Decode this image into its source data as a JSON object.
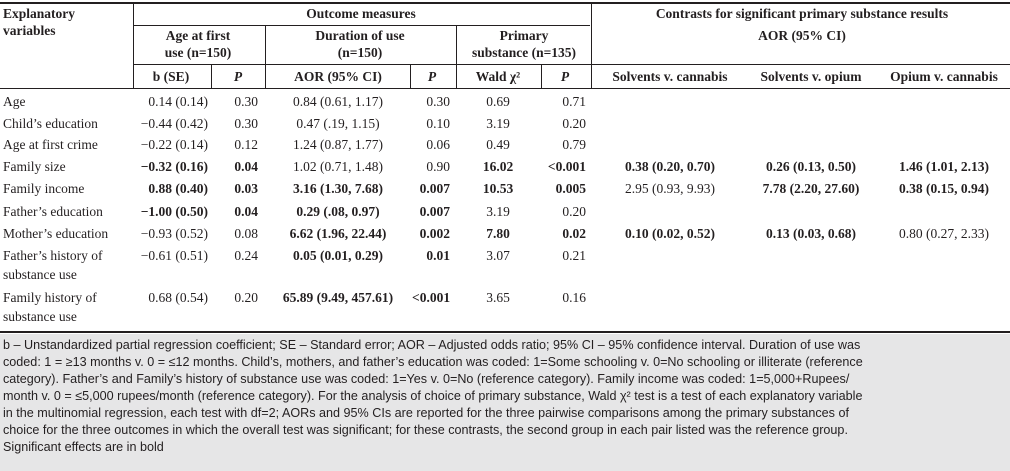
{
  "header": {
    "explanatory": [
      "Explanatory",
      "variables"
    ],
    "outcome_measures": "Outcome measures",
    "contrasts_title": "Contrasts for significant primary substance results",
    "contrasts_sub": "AOR (95% CI)",
    "age_first_use": [
      "Age at first",
      "use (n=150)"
    ],
    "duration": [
      "Duration of use",
      "(n=150)"
    ],
    "primary": [
      "Primary",
      "substance (n=135)"
    ],
    "sub": [
      "b (SE)",
      "P",
      "AOR (95% CI)",
      "P",
      "Wald χ²",
      "P",
      "Solvents v. cannabis",
      "Solvents v. opium",
      "Opium v. cannabis"
    ]
  },
  "rows": [
    {
      "label": [
        "Age"
      ],
      "c": [
        "0.14 (0.14)",
        "0.30",
        "0.84 (0.61, 1.17)",
        "0.30",
        "0.69",
        "0.71",
        "",
        "",
        ""
      ],
      "bold": [
        0,
        0,
        0,
        0,
        0,
        0,
        0,
        0,
        0
      ]
    },
    {
      "label": [
        "Child’s education"
      ],
      "c": [
        "−0.44 (0.42)",
        "0.30",
        "0.47 (.19, 1.15)",
        "0.10",
        "3.19",
        "0.20",
        "",
        "",
        ""
      ],
      "bold": [
        0,
        0,
        0,
        0,
        0,
        0,
        0,
        0,
        0
      ]
    },
    {
      "label": [
        "Age at first crime"
      ],
      "c": [
        "−0.22 (0.14)",
        "0.12",
        "1.24 (0.87, 1.77)",
        "0.06",
        "0.49",
        "0.79",
        "",
        "",
        ""
      ],
      "bold": [
        0,
        0,
        0,
        0,
        0,
        0,
        0,
        0,
        0
      ]
    },
    {
      "label": [
        "Family size"
      ],
      "c": [
        "−0.32 (0.16)",
        "0.04",
        "1.02 (0.71, 1.48)",
        "0.90",
        "16.02",
        "<0.001",
        "0.38 (0.20, 0.70)",
        "0.26 (0.13, 0.50)",
        "1.46 (1.01, 2.13)"
      ],
      "bold": [
        1,
        1,
        0,
        0,
        1,
        1,
        1,
        1,
        1
      ]
    },
    {
      "label": [
        "Family income"
      ],
      "c": [
        "0.88 (0.40)",
        "0.03",
        "3.16 (1.30, 7.68)",
        "0.007",
        "10.53",
        "0.005",
        "2.95 (0.93, 9.93)",
        "7.78 (2.20, 27.60)",
        "0.38 (0.15, 0.94)"
      ],
      "bold": [
        1,
        1,
        1,
        1,
        1,
        1,
        0,
        1,
        1
      ]
    },
    {
      "label": [
        "Father’s education"
      ],
      "c": [
        "−1.00 (0.50)",
        "0.04",
        "0.29 (.08, 0.97)",
        "0.007",
        "3.19",
        "0.20",
        "",
        "",
        ""
      ],
      "bold": [
        1,
        1,
        1,
        1,
        0,
        0,
        0,
        0,
        0
      ]
    },
    {
      "label": [
        "Mother’s education"
      ],
      "c": [
        "−0.93 (0.52)",
        "0.08",
        "6.62 (1.96, 22.44)",
        "0.002",
        "7.80",
        "0.02",
        "0.10 (0.02, 0.52)",
        "0.13 (0.03, 0.68)",
        "0.80 (0.27, 2.33)"
      ],
      "bold": [
        0,
        0,
        1,
        1,
        1,
        1,
        1,
        1,
        0
      ]
    },
    {
      "label": [
        "Father’s history of",
        "substance use"
      ],
      "c": [
        "−0.61 (0.51)",
        "0.24",
        "0.05 (0.01, 0.29)",
        "0.01",
        "3.07",
        "0.21",
        "",
        "",
        ""
      ],
      "bold": [
        0,
        0,
        1,
        1,
        0,
        0,
        0,
        0,
        0
      ]
    },
    {
      "label": [
        "Family history of",
        "substance use"
      ],
      "c": [
        "0.68 (0.54)",
        "0.20",
        "65.89 (9.49, 457.61)",
        "<0.001",
        "3.65",
        "0.16",
        "",
        "",
        ""
      ],
      "bold": [
        0,
        0,
        1,
        1,
        0,
        0,
        0,
        0,
        0
      ]
    }
  ],
  "footnote": [
    "b – Unstandardized partial regression coefficient; SE – Standard error; AOR – Adjusted odds ratio; 95% CI – 95% confidence interval. Duration of use was",
    "coded: 1 = ≥13 months v. 0 = ≤12 months. Child’s, mothers, and father’s education was coded: 1=Some schooling v. 0=No schooling or illiterate (reference",
    "category). Father’s and Family’s history of substance use was coded: 1=Yes v. 0=No (reference category). Family income was coded: 1=5,000+Rupees/",
    "month v. 0 = ≤5,000 rupees/month (reference category). For the analysis of choice of primary substance, Wald χ² test is a test of each explanatory variable",
    "in the multinomial regression, each test with df=2; AORs and 95% CIs are reported for the three pairwise comparisons among the primary substances of",
    "choice for the three outcomes in which the overall test was significant; for these contrasts, the second group in each pair listed was the reference group.",
    "Significant effects are in bold"
  ]
}
